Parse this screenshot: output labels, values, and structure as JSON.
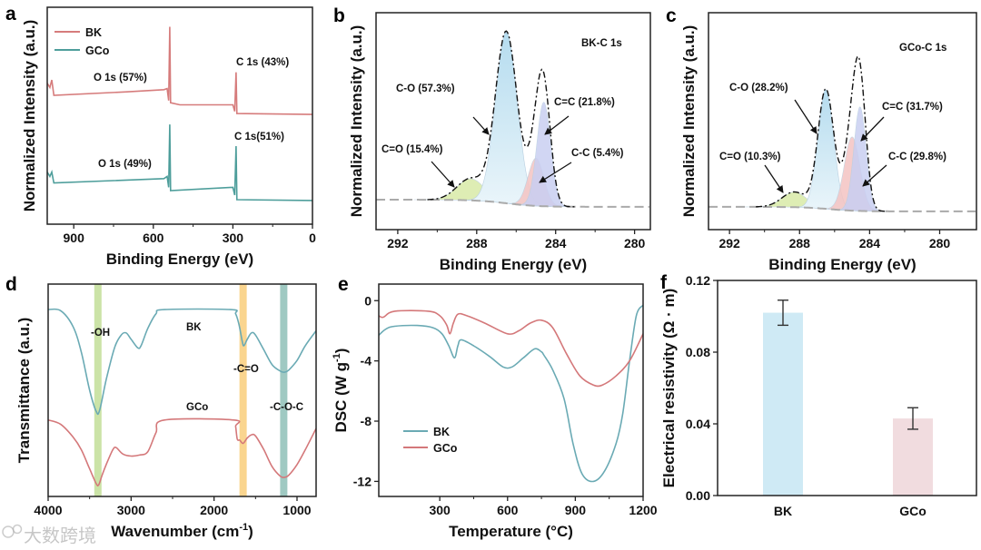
{
  "watermark": "大数跨境",
  "colors": {
    "bk_red": "#d67c7c",
    "gco_teal": "#4e9e9b",
    "ftir_bk": "#6aaab4",
    "ftir_gco": "#d4787a",
    "axis": "#111111"
  },
  "chart_data": [
    {
      "panel": "a",
      "type": "line",
      "xlabel": "Binding Energy (eV)",
      "ylabel": "Normalized Intensity (a.u.)",
      "xlim": [
        1000,
        0
      ],
      "ylim": [
        0,
        100
      ],
      "x_ticks": [
        {
          "v": 900,
          "label": "900"
        },
        {
          "v": 600,
          "label": "600"
        },
        {
          "v": 300,
          "label": "300"
        },
        {
          "v": 0,
          "label": "0"
        }
      ],
      "legend": {
        "placement": "top-left",
        "entries": [
          "BK",
          "GCo"
        ]
      },
      "series": [
        {
          "name": "BK",
          "color": "#d67c7c",
          "points": [
            [
              1000,
              65
            ],
            [
              990,
              63
            ],
            [
              983,
              66.5
            ],
            [
              975,
              59.4
            ],
            [
              700,
              61
            ],
            [
              560,
              62
            ],
            [
              548,
              62.5
            ],
            [
              542,
              57
            ],
            [
              538,
              91
            ],
            [
              535,
              56
            ],
            [
              500,
              55
            ],
            [
              300,
              55
            ],
            [
              293,
              52
            ],
            [
              288,
              70
            ],
            [
              285,
              51
            ],
            [
              0,
              50.6
            ]
          ]
        },
        {
          "name": "GCo",
          "color": "#4e9e9b",
          "points": [
            [
              1000,
              24
            ],
            [
              990,
              22
            ],
            [
              983,
              24
            ],
            [
              975,
              19
            ],
            [
              560,
              21
            ],
            [
              548,
              22
            ],
            [
              542,
              17
            ],
            [
              538,
              46
            ],
            [
              535,
              15.5
            ],
            [
              300,
              17
            ],
            [
              293,
              13.4
            ],
            [
              288,
              36
            ],
            [
              285,
              11.3
            ],
            [
              0,
              10.9
            ]
          ]
        }
      ],
      "annotations": [
        "O 1s (57%)",
        "C 1s (43%)",
        "O 1s (49%)",
        "C 1s(51%)"
      ]
    },
    {
      "panel": "b",
      "type": "line",
      "title": "BK-C 1s",
      "xlabel": "Binding Energy (eV)",
      "ylabel": "Normalized Intensity (a.u.)",
      "xlim": [
        293.1,
        279.2
      ],
      "ylim": [
        0,
        100
      ],
      "x_ticks": [
        {
          "v": 292,
          "label": "292"
        },
        {
          "v": 288,
          "label": "288"
        },
        {
          "v": 284,
          "label": "284"
        },
        {
          "v": 280,
          "label": "280"
        }
      ],
      "baseline": {
        "left": 13.8,
        "right": 10.5,
        "center": 286.5
      },
      "components": [
        {
          "name": "C=O",
          "label": "C=O (15.4%)",
          "center": 288.3,
          "amplitude": 10,
          "sigma": 0.7,
          "color": "#d9eba8"
        },
        {
          "name": "C-O",
          "label": "C-O (57.3%)",
          "center": 286.5,
          "amplitude": 79,
          "sigma": 0.55,
          "color": "#c4e3f3"
        },
        {
          "name": "C-C",
          "label": "C-C (5.4%)",
          "center": 285.0,
          "amplitude": 22,
          "sigma": 0.4,
          "color": "#f4c4c2"
        },
        {
          "name": "C=C",
          "label": "C=C (21.8%)",
          "center": 284.6,
          "amplitude": 48,
          "sigma": 0.35,
          "color": "#c9cff2"
        }
      ]
    },
    {
      "panel": "c",
      "type": "line",
      "title": "GCo-C 1s",
      "xlabel": "Binding Energy (eV)",
      "ylabel": "Normalized Intensity (a.u.)",
      "xlim": [
        293.2,
        277.9
      ],
      "ylim": [
        0,
        100
      ],
      "x_ticks": [
        {
          "v": 292,
          "label": "292"
        },
        {
          "v": 288,
          "label": "288"
        },
        {
          "v": 284,
          "label": "284"
        },
        {
          "v": 280,
          "label": "280"
        }
      ],
      "baseline": {
        "left": 10.5,
        "right": 8.4,
        "center": 286.3
      },
      "components": [
        {
          "name": "C=O",
          "label": "C=O (10.3%)",
          "center": 288.3,
          "amplitude": 7,
          "sigma": 0.7,
          "color": "#d9eba8"
        },
        {
          "name": "C-O",
          "label": "C-O (28.2%)",
          "center": 286.5,
          "amplitude": 55,
          "sigma": 0.45,
          "color": "#c4e3f3"
        },
        {
          "name": "C-C",
          "label": "C-C (29.8%)",
          "center": 285.0,
          "amplitude": 34,
          "sigma": 0.45,
          "color": "#f4c4c2"
        },
        {
          "name": "C=C",
          "label": "C=C (31.7%)",
          "center": 284.55,
          "amplitude": 48,
          "sigma": 0.35,
          "color": "#c9cff2"
        }
      ]
    },
    {
      "panel": "d",
      "type": "line",
      "xlabel": "Wavenumber (cm",
      "xlabel_sup": "-1",
      "xlabel_end": ")",
      "ylabel": "Transmittance (a.u.)",
      "xlim": [
        4000,
        770
      ],
      "ylim": [
        0,
        100
      ],
      "x_ticks": [
        {
          "v": 4000,
          "label": "4000"
        },
        {
          "v": 3000,
          "label": "3000"
        },
        {
          "v": 2000,
          "label": "2000"
        },
        {
          "v": 1000,
          "label": "1000"
        }
      ],
      "bands": [
        {
          "label": "-OH",
          "center": 3400,
          "color": "#b9d98a"
        },
        {
          "label": "-C=O",
          "center": 1650,
          "color": "#f8c76a"
        },
        {
          "label": "-C-O-C",
          "center": 1160,
          "color": "#7fb7ae"
        }
      ],
      "series": [
        {
          "name": "BK",
          "color": "#6aaab4",
          "points": [
            [
              4000,
              88
            ],
            [
              3850,
              87.5
            ],
            [
              3700,
              80
            ],
            [
              3600,
              68
            ],
            [
              3500,
              50
            ],
            [
              3420,
              40
            ],
            [
              3380,
              40.5
            ],
            [
              3300,
              55
            ],
            [
              3200,
              70
            ],
            [
              3120,
              76
            ],
            [
              3060,
              77
            ],
            [
              3000,
              74
            ],
            [
              2920,
              70
            ],
            [
              2880,
              71
            ],
            [
              2800,
              79
            ],
            [
              2700,
              86
            ],
            [
              2600,
              88
            ],
            [
              1800,
              88
            ],
            [
              1740,
              86
            ],
            [
              1700,
              81
            ],
            [
              1660,
              73
            ],
            [
              1640,
              71
            ],
            [
              1600,
              74
            ],
            [
              1550,
              77
            ],
            [
              1500,
              76
            ],
            [
              1400,
              69
            ],
            [
              1300,
              62
            ],
            [
              1200,
              59
            ],
            [
              1150,
              58.5
            ],
            [
              1100,
              59.5
            ],
            [
              1000,
              64
            ],
            [
              900,
              71
            ],
            [
              770,
              78
            ]
          ]
        },
        {
          "name": "GCo",
          "color": "#d4787a",
          "points": [
            [
              4000,
              36
            ],
            [
              3850,
              34
            ],
            [
              3700,
              28
            ],
            [
              3600,
              22
            ],
            [
              3500,
              13
            ],
            [
              3420,
              6
            ],
            [
              3390,
              5.5
            ],
            [
              3350,
              10
            ],
            [
              3300,
              15
            ],
            [
              3220,
              22
            ],
            [
              3180,
              23
            ],
            [
              3100,
              20
            ],
            [
              3000,
              19
            ],
            [
              2900,
              19.5
            ],
            [
              2800,
              21
            ],
            [
              2700,
              30
            ],
            [
              2600,
              36
            ],
            [
              1760,
              36
            ],
            [
              1740,
              33
            ],
            [
              1720,
              27
            ],
            [
              1690,
              26.5
            ],
            [
              1650,
              25
            ],
            [
              1600,
              27.5
            ],
            [
              1550,
              29
            ],
            [
              1500,
              28.5
            ],
            [
              1400,
              22
            ],
            [
              1300,
              14
            ],
            [
              1200,
              9.5
            ],
            [
              1150,
              9
            ],
            [
              1100,
              10
            ],
            [
              1000,
              15
            ],
            [
              900,
              22
            ],
            [
              770,
              32
            ]
          ]
        }
      ],
      "annotations": [
        "BK",
        "GCo"
      ]
    },
    {
      "panel": "e",
      "type": "line",
      "xlabel": "Temperature (°C)",
      "ylabel": "DSC (W g",
      "ylabel_sup": "-1",
      "ylabel_end": ")",
      "xlim": [
        30,
        1200
      ],
      "ylim": [
        -13,
        1.1
      ],
      "x_ticks": [
        {
          "v": 300,
          "label": "300"
        },
        {
          "v": 600,
          "label": "600"
        },
        {
          "v": 900,
          "label": "900"
        },
        {
          "v": 1200,
          "label": "1200"
        }
      ],
      "y_ticks": [
        {
          "v": 0,
          "label": "0"
        },
        {
          "v": -4,
          "label": "-4"
        },
        {
          "v": -8,
          "label": "-8"
        },
        {
          "v": -12,
          "label": "-12"
        }
      ],
      "legend": {
        "placement": "center-left",
        "entries": [
          "BK",
          "GCo"
        ]
      },
      "series": [
        {
          "name": "BK",
          "color": "#6aaab4",
          "points": [
            [
              30,
              -2.3
            ],
            [
              60,
              -1.9
            ],
            [
              100,
              -1.7
            ],
            [
              200,
              -1.65
            ],
            [
              270,
              -1.8
            ],
            [
              310,
              -2.2
            ],
            [
              340,
              -3.0
            ],
            [
              365,
              -3.8
            ],
            [
              380,
              -3.0
            ],
            [
              395,
              -2.6
            ],
            [
              450,
              -3.0
            ],
            [
              520,
              -3.7
            ],
            [
              580,
              -4.4
            ],
            [
              620,
              -4.4
            ],
            [
              670,
              -3.8
            ],
            [
              720,
              -3.2
            ],
            [
              750,
              -3.4
            ],
            [
              760,
              -3.6
            ],
            [
              800,
              -4.6
            ],
            [
              850,
              -6.5
            ],
            [
              890,
              -9.5
            ],
            [
              930,
              -11.5
            ],
            [
              980,
              -12.0
            ],
            [
              1030,
              -11.3
            ],
            [
              1080,
              -9.5
            ],
            [
              1110,
              -7.5
            ],
            [
              1140,
              -4.0
            ],
            [
              1170,
              -1.0
            ],
            [
              1200,
              -0.3
            ]
          ]
        },
        {
          "name": "GCo",
          "color": "#d4787a",
          "points": [
            [
              30,
              -1.0
            ],
            [
              50,
              -1.1
            ],
            [
              100,
              -0.7
            ],
            [
              250,
              -0.7
            ],
            [
              300,
              -1.0
            ],
            [
              330,
              -1.6
            ],
            [
              345,
              -2.2
            ],
            [
              360,
              -1.5
            ],
            [
              380,
              -0.9
            ],
            [
              420,
              -1.0
            ],
            [
              500,
              -1.5
            ],
            [
              600,
              -2.2
            ],
            [
              650,
              -2.0
            ],
            [
              700,
              -1.5
            ],
            [
              750,
              -1.3
            ],
            [
              800,
              -1.8
            ],
            [
              860,
              -3.5
            ],
            [
              920,
              -5.0
            ],
            [
              980,
              -5.6
            ],
            [
              1020,
              -5.6
            ],
            [
              1080,
              -5.0
            ],
            [
              1140,
              -4.0
            ],
            [
              1200,
              -2.2
            ]
          ]
        }
      ]
    },
    {
      "panel": "f",
      "type": "bar",
      "xlabel": "",
      "ylabel": "Electrical resistivity (Ω · m)",
      "ylim": [
        0,
        0.12
      ],
      "y_ticks": [
        {
          "v": 0,
          "label": "0.00"
        },
        {
          "v": 0.04,
          "label": "0.04"
        },
        {
          "v": 0.08,
          "label": "0.08"
        },
        {
          "v": 0.12,
          "label": "0.12"
        }
      ],
      "categories": [
        "BK",
        "GCo"
      ],
      "values": [
        0.102,
        0.043
      ],
      "errors": [
        0.007,
        0.006
      ],
      "bar_colors": [
        "#cfeaf5",
        "#f1dcdf"
      ]
    }
  ]
}
